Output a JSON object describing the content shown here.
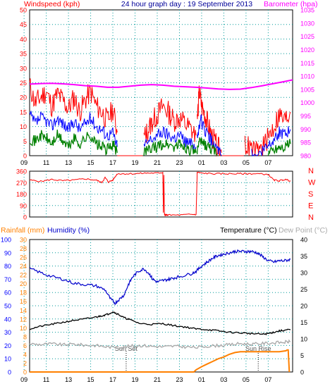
{
  "header": {
    "title": "24 hour graph day : 19 September 2013"
  },
  "colors": {
    "wind": "#ff0000",
    "wind_avg": "#0000ff",
    "wind_low": "#008000",
    "barometer": "#ff00ff",
    "grid": "#009999",
    "temperature": "#000000",
    "humidity": "#0000cc",
    "dewpoint": "#aaaaaa",
    "rainfall": "#ff8000",
    "axis_left": "#ff0000",
    "axis_humidity": "#0000ff",
    "axis_rain": "#ff8000"
  },
  "chart_data": [
    {
      "type": "line",
      "id": "wind-barometer",
      "title": "",
      "left_label": "Windspeed (kph)",
      "right_label": "Barometer (hpa)",
      "x_ticks": [
        "11",
        "13",
        "15",
        "17",
        "19",
        "21",
        "23",
        "01",
        "03",
        "05",
        "07",
        "09"
      ],
      "y_ticks_left": [
        0,
        5,
        10,
        15,
        20,
        25,
        30,
        35,
        40,
        45,
        50
      ],
      "y_ticks_right": [
        980,
        985,
        990,
        995,
        1000,
        1005,
        1010,
        1015,
        1020,
        1025,
        1030,
        1035
      ],
      "ylim_left": [
        0,
        50
      ],
      "ylim_right": [
        980,
        1035
      ],
      "x_unit": "hour",
      "xlim": [
        9.5,
        33.2
      ],
      "grid": true,
      "series": {
        "gust_segments": [
          {
            "x": [
              9.5,
              10.0,
              10.5,
              11.0,
              11.5,
              12.0,
              12.5,
              13.0,
              13.5,
              14.0,
              14.5,
              15.0,
              15.5,
              16.0,
              16.5,
              17.0,
              17.4
            ],
            "y": [
              24,
              18,
              20,
              22,
              17,
              21,
              19,
              16,
              20,
              15,
              19,
              22,
              17,
              15,
              12,
              16,
              8
            ]
          },
          {
            "x": [
              17.4,
              18.0,
              19.0,
              19.7
            ],
            "y": [
              0,
              0,
              0,
              0
            ]
          },
          {
            "x": [
              19.8,
              20.2,
              20.6,
              21.0,
              21.5,
              22.0,
              22.5,
              23.0,
              23.5,
              24.0,
              24.5
            ],
            "y": [
              6,
              9,
              12,
              14,
              17,
              15,
              12,
              13,
              11,
              9,
              7
            ]
          },
          {
            "x": [
              24.6,
              24.8,
              25.0,
              25.3,
              25.6,
              26.0,
              26.4,
              26.8
            ],
            "y": [
              12,
              22,
              17,
              14,
              10,
              6,
              3,
              1
            ]
          },
          {
            "x": [
              26.8,
              27.5,
              28.0,
              28.8
            ],
            "y": [
              0,
              0,
              0,
              0
            ]
          },
          {
            "x": [
              28.9,
              29.5,
              30.0,
              30.5,
              31.0,
              31.5,
              32.0,
              32.5,
              33.0
            ],
            "y": [
              4,
              2,
              1,
              3,
              6,
              10,
              14,
              12,
              15
            ]
          }
        ],
        "avg_segments": [
          {
            "x": [
              9.5,
              10.0,
              10.5,
              11.0,
              11.5,
              12.0,
              12.5,
              13.0,
              13.5,
              14.0,
              14.5,
              15.0,
              15.5,
              16.0,
              16.5,
              17.0,
              17.4
            ],
            "y": [
              14,
              11,
              13,
              12,
              10,
              13,
              11,
              9,
              12,
              9,
              11,
              13,
              10,
              9,
              7,
              8,
              3
            ]
          },
          {
            "x": [
              19.8,
              20.3,
              21.0,
              21.5,
              22.0,
              22.5,
              23.0,
              23.5,
              24.0,
              24.5
            ],
            "y": [
              3,
              5,
              7,
              8,
              7,
              6,
              7,
              5,
              4,
              3
            ]
          },
          {
            "x": [
              24.6,
              24.9,
              25.2,
              25.6,
              26.0,
              26.4,
              26.8
            ],
            "y": [
              6,
              13,
              9,
              7,
              4,
              2,
              0
            ]
          },
          {
            "x": [
              29.5,
              30.0,
              30.5,
              31.0,
              31.5,
              32.0,
              32.5,
              33.0
            ],
            "y": [
              1,
              0,
              2,
              4,
              6,
              8,
              7,
              9
            ]
          }
        ],
        "low_segments": [
          {
            "x": [
              9.5,
              10.0,
              10.5,
              11.0,
              11.5,
              12.0,
              12.5,
              13.0,
              13.5,
              14.0,
              14.5,
              15.0,
              15.5,
              16.0,
              16.5,
              17.0,
              17.4
            ],
            "y": [
              6,
              5,
              7,
              6,
              4,
              7,
              5,
              3,
              6,
              4,
              6,
              7,
              4,
              3,
              2,
              4,
              1
            ]
          },
          {
            "x": [
              19.8,
              20.3,
              21.0,
              21.5,
              22.0,
              22.5,
              23.0,
              23.5,
              24.0,
              24.5
            ],
            "y": [
              1,
              2,
              3,
              4,
              4,
              3,
              4,
              3,
              2,
              1
            ]
          },
          {
            "x": [
              24.6,
              24.9,
              25.2,
              25.6,
              26.0,
              26.4
            ],
            "y": [
              2,
              5,
              4,
              3,
              2,
              0
            ]
          },
          {
            "x": [
              31.0,
              31.5,
              32.0,
              32.5,
              33.0
            ],
            "y": [
              1,
              2,
              3,
              3,
              4
            ]
          }
        ],
        "barometer": {
          "x": [
            9.5,
            10.5,
            11.5,
            12.5,
            13.5,
            14.5,
            15.5,
            16.5,
            17.5,
            18.5,
            19.5,
            20.5,
            21.5,
            22.5,
            23.5,
            24.5,
            25.5,
            26.5,
            27.5,
            28.5,
            29.5,
            30.5,
            31.5,
            32.5,
            33.2
          ],
          "y": [
            1007.0,
            1007.2,
            1007.3,
            1007.1,
            1006.8,
            1006.4,
            1006.2,
            1005.8,
            1005.8,
            1006.2,
            1006.6,
            1006.8,
            1006.6,
            1006.2,
            1006.0,
            1005.8,
            1005.5,
            1005.2,
            1005.0,
            1005.1,
            1005.7,
            1006.4,
            1007.2,
            1008.0,
            1008.6
          ]
        }
      }
    },
    {
      "type": "line",
      "id": "wind-direction",
      "y_ticks": [
        0,
        90,
        180,
        270,
        360
      ],
      "ylim": [
        0,
        360
      ],
      "right_labels": [
        "N",
        "W",
        "S",
        "E",
        "N"
      ],
      "x_ticks": [
        "11",
        "13",
        "15",
        "17",
        "19",
        "21",
        "23",
        "01",
        "03",
        "05",
        "07",
        "09"
      ],
      "xlim": [
        9.5,
        33.2
      ],
      "grid": true,
      "series": {
        "direction": {
          "x": [
            9.5,
            10.5,
            11.5,
            12.5,
            13.5,
            14.5,
            15.5,
            16.0,
            16.3,
            16.6,
            17.0,
            17.4,
            18.0,
            19.0,
            20.0,
            21.0,
            21.5,
            21.55,
            21.6,
            21.65,
            21.7,
            21.8,
            22.0,
            23.0,
            24.0,
            24.5,
            24.6,
            25.0,
            26.0,
            27.0,
            28.0,
            29.0,
            30.0,
            31.0,
            31.5,
            32.0,
            32.5,
            33.0
          ],
          "y": [
            290,
            280,
            295,
            285,
            290,
            300,
            290,
            270,
            310,
            275,
            290,
            340,
            340,
            340,
            345,
            345,
            350,
            30,
            330,
            20,
            15,
            15,
            15,
            15,
            20,
            20,
            350,
            345,
            340,
            340,
            340,
            340,
            340,
            335,
            290,
            285,
            295,
            285
          ]
        }
      }
    },
    {
      "type": "line",
      "id": "temp-humidity-rain",
      "label_rain": "Rainfall (mm)",
      "label_humidity": "Humidity (%)",
      "label_temp": "Temperature (°C)",
      "label_dew": "Dew Point (°C)",
      "y_ticks_humidity": [
        0,
        10,
        20,
        30,
        40,
        50,
        60,
        70,
        80,
        90,
        100
      ],
      "ylim_humidity": [
        0,
        100
      ],
      "y_ticks_rain": [
        0,
        2,
        4,
        6,
        8,
        10,
        12,
        14,
        16,
        18,
        20,
        22,
        24,
        26,
        28,
        30
      ],
      "ylim_rain": [
        0,
        30
      ],
      "y_ticks_temp": [
        0,
        5,
        10,
        15,
        20,
        25,
        30,
        35,
        40
      ],
      "ylim_temp": [
        0,
        40
      ],
      "x_ticks": [
        "11",
        "13",
        "15",
        "17",
        "19",
        "21",
        "23",
        "01",
        "03",
        "05",
        "07",
        "09"
      ],
      "xlim": [
        9.5,
        33.2
      ],
      "grid": true,
      "annotations": [
        {
          "text": "Sun Set",
          "x": 18.2
        },
        {
          "text": "Sun Rise",
          "x": 30.1
        }
      ],
      "series": {
        "humidity": {
          "x": [
            9.5,
            10.5,
            11.5,
            12.5,
            13.5,
            14.5,
            15.5,
            16.3,
            16.8,
            17.2,
            17.6,
            18.0,
            18.4,
            18.8,
            19.3,
            19.8,
            20.3,
            20.6,
            21.0,
            21.5,
            22.0,
            22.5,
            23.0,
            24.0,
            24.5,
            25.0,
            25.5,
            26.0,
            26.5,
            27.0,
            27.5,
            28.0,
            28.5,
            29.0,
            29.5,
            30.0,
            30.5,
            31.0,
            31.5,
            32.0,
            32.5,
            33.0
          ],
          "y": [
            78,
            75,
            72,
            70,
            67,
            66,
            65,
            62,
            55,
            52,
            55,
            58,
            66,
            72,
            76,
            78,
            74,
            70,
            68,
            69,
            70,
            71,
            72,
            74,
            76,
            80,
            83,
            86,
            88,
            89,
            90,
            91,
            91,
            91,
            91,
            90,
            87,
            84,
            83,
            84,
            84,
            85
          ]
        },
        "temperature": {
          "x": [
            9.5,
            10.5,
            11.5,
            12.5,
            13.5,
            14.5,
            15.5,
            16.0,
            16.5,
            17.0,
            17.5,
            18.0,
            18.5,
            19.5,
            20.5,
            21.5,
            22.5,
            23.5,
            24.5,
            25.5,
            26.5,
            27.5,
            28.5,
            29.5,
            30.5,
            31.0,
            31.5,
            32.0,
            32.5,
            33.0
          ],
          "y": [
            13.0,
            13.8,
            14.4,
            15.0,
            15.6,
            16.0,
            16.6,
            17.0,
            17.4,
            18.2,
            17.4,
            16.4,
            15.8,
            14.6,
            14.4,
            14.6,
            14.0,
            13.6,
            13.0,
            12.8,
            12.4,
            12.0,
            11.8,
            11.6,
            11.4,
            11.6,
            12.0,
            12.4,
            12.6,
            12.8
          ]
        },
        "dewpoint": {
          "x": [
            9.5,
            10.5,
            11.5,
            12.5,
            13.5,
            14.5,
            15.5,
            16.5,
            17.5,
            18.5,
            19.5,
            20.5,
            21.5,
            22.5,
            23.5,
            24.5,
            25.5,
            26.5,
            27.5,
            28.5,
            29.5,
            30.5,
            31.5,
            32.5,
            33.0
          ],
          "y": [
            8.5,
            8.3,
            8.5,
            8.2,
            8.4,
            8.1,
            8.0,
            7.6,
            7.4,
            7.8,
            8.0,
            7.8,
            7.6,
            7.8,
            7.6,
            7.4,
            7.8,
            8.0,
            8.2,
            8.6,
            8.4,
            8.6,
            8.8,
            9.0,
            9.2
          ]
        },
        "rainfall": {
          "x": [
            9.5,
            24.3,
            24.5,
            25.0,
            25.5,
            26.0,
            26.5,
            27.0,
            27.5,
            28.0,
            28.5,
            29.0,
            30.0,
            31.0,
            32.0,
            32.6,
            32.7,
            32.8,
            32.9
          ],
          "y": [
            0.0,
            0.0,
            0.5,
            1.2,
            1.8,
            2.4,
            3.0,
            3.4,
            4.0,
            4.4,
            4.6,
            4.6,
            4.6,
            4.6,
            4.6,
            4.8,
            5.0,
            5.0,
            0.0
          ]
        }
      }
    }
  ]
}
